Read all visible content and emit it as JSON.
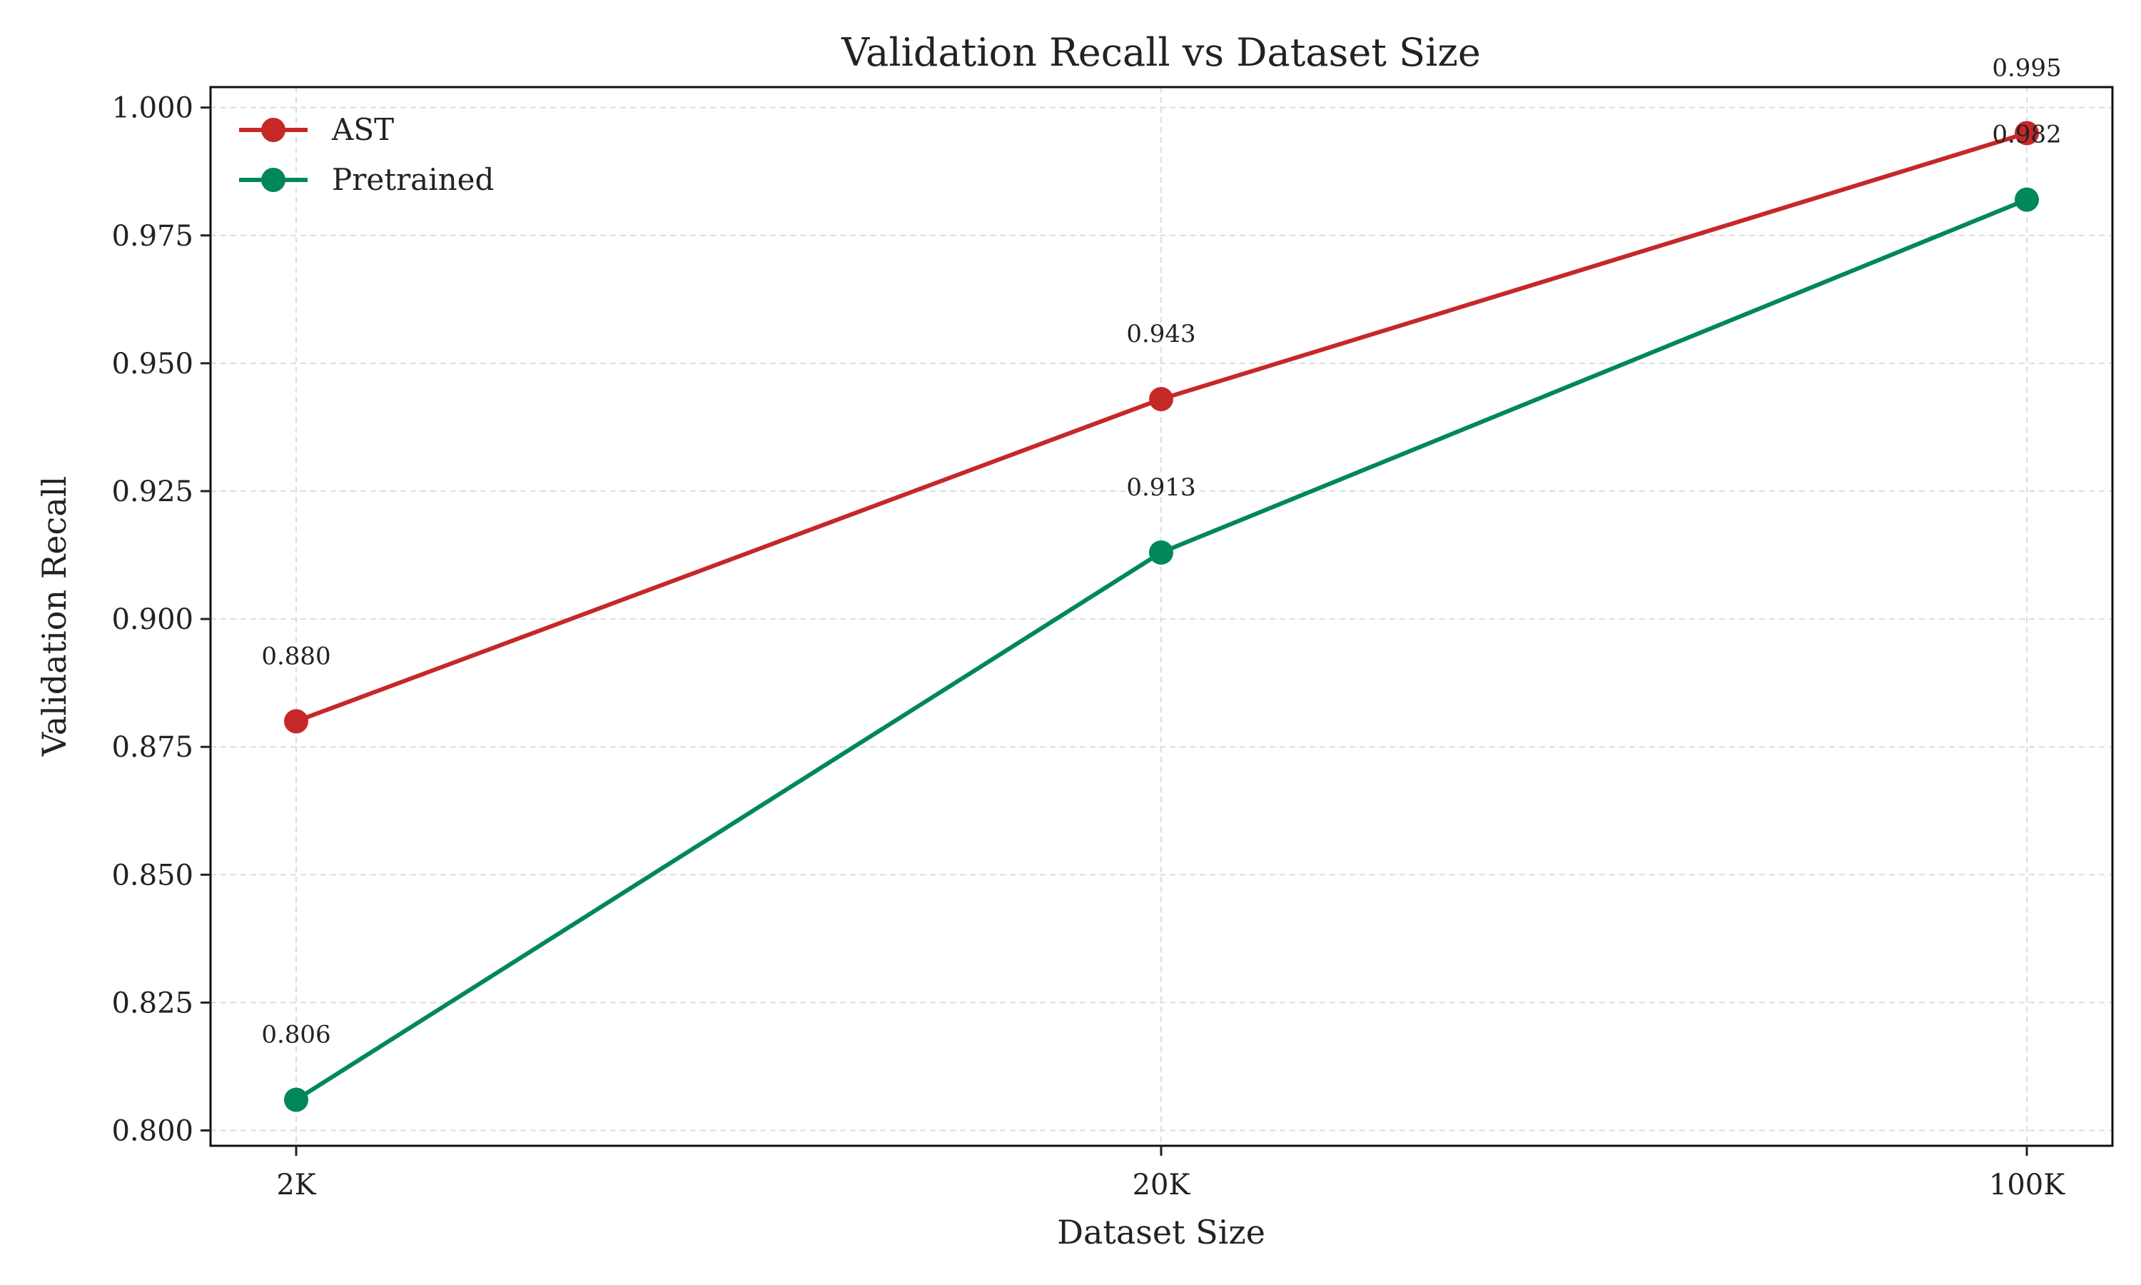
{
  "chart_data": {
    "type": "line",
    "title": "Validation Recall vs Dataset Size",
    "xlabel": "Dataset Size",
    "ylabel": "Validation Recall",
    "categories": [
      "2K",
      "20K",
      "100K"
    ],
    "ylim": [
      0.797,
      1.004
    ],
    "yticks": [
      0.8,
      0.825,
      0.85,
      0.875,
      0.9,
      0.925,
      0.95,
      0.975,
      1.0
    ],
    "ytick_labels": [
      "0.800",
      "0.825",
      "0.850",
      "0.875",
      "0.900",
      "0.925",
      "0.950",
      "0.975",
      "1.000"
    ],
    "grid": true,
    "legend_position": "top-left",
    "series": [
      {
        "name": "AST",
        "color": "#c62828",
        "values": [
          0.88,
          0.943,
          0.995
        ],
        "value_labels": [
          "0.880",
          "0.943",
          "0.995"
        ]
      },
      {
        "name": "Pretrained",
        "color": "#00875a",
        "values": [
          0.806,
          0.913,
          0.982
        ],
        "value_labels": [
          "0.806",
          "0.913",
          "0.982"
        ]
      }
    ]
  }
}
